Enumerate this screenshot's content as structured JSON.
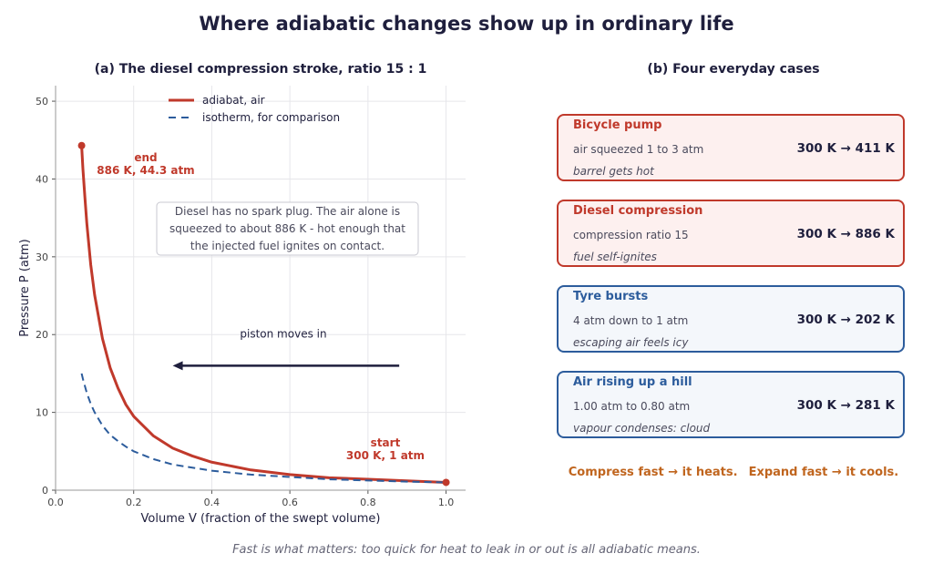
{
  "title": "Where adiabatic changes show up in ordinary life",
  "chart_data": {
    "type": "line",
    "title": "(a) The diesel compression stroke, ratio 15 : 1",
    "xlabel": "Volume V (fraction of the swept volume)",
    "ylabel": "Pressure P (atm)",
    "xlim": [
      0.0,
      1.05
    ],
    "ylim": [
      0,
      52
    ],
    "xticks": [
      "0.0",
      "0.2",
      "0.4",
      "0.6",
      "0.8",
      "1.0"
    ],
    "yticks": [
      "0",
      "10",
      "20",
      "30",
      "40",
      "50"
    ],
    "grid": true,
    "legend_position": "top-center",
    "series": [
      {
        "name": "adiabat, air",
        "color": "#c0392b",
        "style": "solid",
        "x": [
          0.0667,
          0.07,
          0.075,
          0.08,
          0.09,
          0.1,
          0.12,
          0.14,
          0.16,
          0.18,
          0.2,
          0.25,
          0.3,
          0.35,
          0.4,
          0.5,
          0.6,
          0.7,
          0.8,
          0.9,
          1.0
        ],
        "y": [
          44.3,
          41.3,
          37.7,
          34.3,
          29.0,
          25.1,
          19.5,
          15.7,
          13.1,
          11.0,
          9.5,
          7.0,
          5.4,
          4.4,
          3.6,
          2.6,
          2.0,
          1.6,
          1.4,
          1.2,
          1.0
        ]
      },
      {
        "name": "isotherm, for comparison",
        "color": "#2c5c9c",
        "style": "dashed",
        "x": [
          0.0667,
          0.07,
          0.08,
          0.09,
          0.1,
          0.12,
          0.14,
          0.16,
          0.18,
          0.2,
          0.25,
          0.3,
          0.35,
          0.4,
          0.5,
          0.6,
          0.7,
          0.8,
          0.9,
          1.0
        ],
        "y": [
          15.0,
          14.3,
          12.5,
          11.1,
          10.0,
          8.3,
          7.1,
          6.3,
          5.6,
          5.0,
          4.0,
          3.3,
          2.9,
          2.5,
          2.0,
          1.7,
          1.4,
          1.25,
          1.1,
          1.0
        ]
      }
    ],
    "points": [
      {
        "x": 0.0667,
        "y": 44.3,
        "label": "end",
        "value_label": "886 K, 44.3 atm",
        "color": "#c0392b"
      },
      {
        "x": 1.0,
        "y": 1.0,
        "label": "start",
        "value_label": "300 K, 1 atm",
        "color": "#c0392b"
      }
    ],
    "arrow": {
      "from_x": 0.88,
      "to_x": 0.3,
      "y": 16,
      "label": "piston moves in"
    },
    "callout": [
      "Diesel has no spark plug. The air alone is",
      "squeezed to about 886 K - hot enough that",
      "the injected fuel ignites on contact."
    ]
  },
  "cases_title": "(b) Four everyday cases",
  "cases": [
    {
      "name": "Bicycle pump",
      "detail": "air squeezed 1 to 3 atm",
      "temps": "300 K  →  411 K",
      "note": "barrel gets hot",
      "kind": "hot"
    },
    {
      "name": "Diesel compression",
      "detail": "compression ratio 15",
      "temps": "300 K  →  886 K",
      "note": "fuel self-ignites",
      "kind": "hot"
    },
    {
      "name": "Tyre bursts",
      "detail": "4 atm down to 1 atm",
      "temps": "300 K  →  202 K",
      "note": "escaping air feels icy",
      "kind": "cool"
    },
    {
      "name": "Air rising up a hill",
      "detail": "1.00 atm to 0.80 atm",
      "temps": "300 K  →  281 K",
      "note": "vapour condenses: cloud",
      "kind": "cool"
    }
  ],
  "summary": {
    "compress": "Compress fast  →  it heats.",
    "expand": "Expand fast  →  it cools."
  },
  "footer": "Fast is what matters: too quick for heat to leak in or out is all adiabatic means."
}
